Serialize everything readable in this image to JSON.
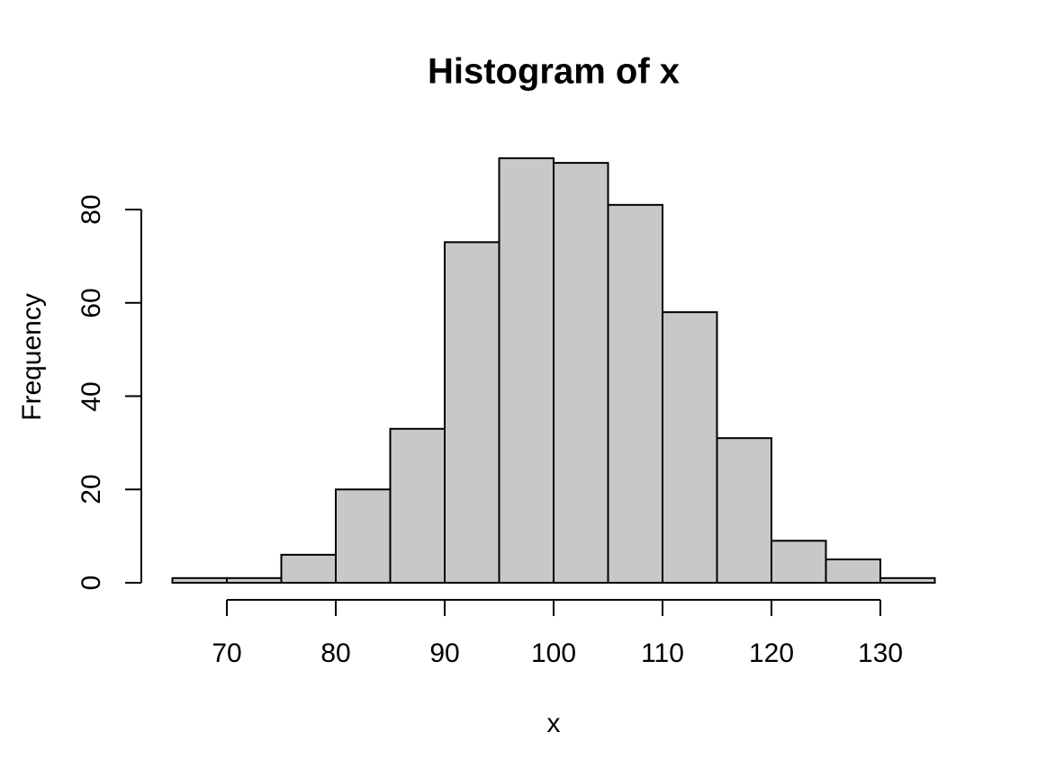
{
  "chart_data": {
    "type": "bar",
    "subtype": "histogram",
    "title": "Histogram of x",
    "xlabel": "x",
    "ylabel": "Frequency",
    "bin_start": 65,
    "bin_width": 5,
    "bin_edges": [
      65,
      70,
      75,
      80,
      85,
      90,
      95,
      100,
      105,
      110,
      115,
      120,
      125,
      130,
      135
    ],
    "counts": [
      1,
      1,
      6,
      20,
      33,
      73,
      91,
      90,
      81,
      58,
      31,
      9,
      5,
      1
    ],
    "x_ticks": [
      70,
      80,
      90,
      100,
      110,
      120,
      130
    ],
    "y_ticks": [
      0,
      20,
      40,
      60,
      80
    ],
    "xlim": [
      65,
      135
    ],
    "ylim": [
      0,
      80
    ],
    "grid": "off",
    "legend": "none",
    "bar_fill": "#c8c8c8",
    "bar_stroke": "#000000",
    "axis_color": "#000000",
    "background": "#ffffff"
  }
}
